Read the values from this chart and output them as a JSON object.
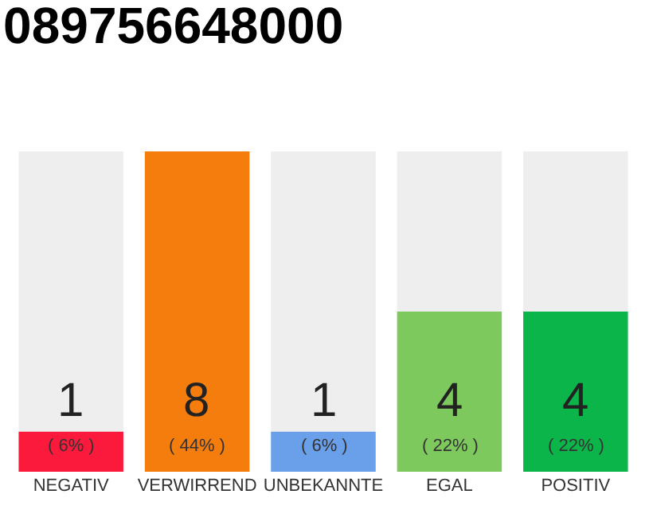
{
  "chart_data": {
    "type": "bar",
    "title": "089756648000",
    "categories": [
      "NEGATIV",
      "VERWIRREND",
      "UNBEKANNTE",
      "EGAL",
      "POSITIV"
    ],
    "values": [
      1,
      8,
      1,
      4,
      4
    ],
    "colors": [
      "#fb1a3b",
      "#f47d0e",
      "#6a9fea",
      "#7dc95e",
      "#0bb54a"
    ],
    "data_labels": true,
    "annotations": [
      {
        "text": "( 6% )",
        "x": "NEGATIV",
        "y": 0
      },
      {
        "text": "( 44% )",
        "x": "VERWIRREND",
        "y": 0
      },
      {
        "text": "( 6% )",
        "x": "UNBEKANNTE",
        "y": 0
      },
      {
        "text": "( 22% )",
        "x": "EGAL",
        "y": 0
      },
      {
        "text": "( 22% )",
        "x": "POSITIV",
        "y": 0
      }
    ],
    "grid": false,
    "legend": false
  }
}
